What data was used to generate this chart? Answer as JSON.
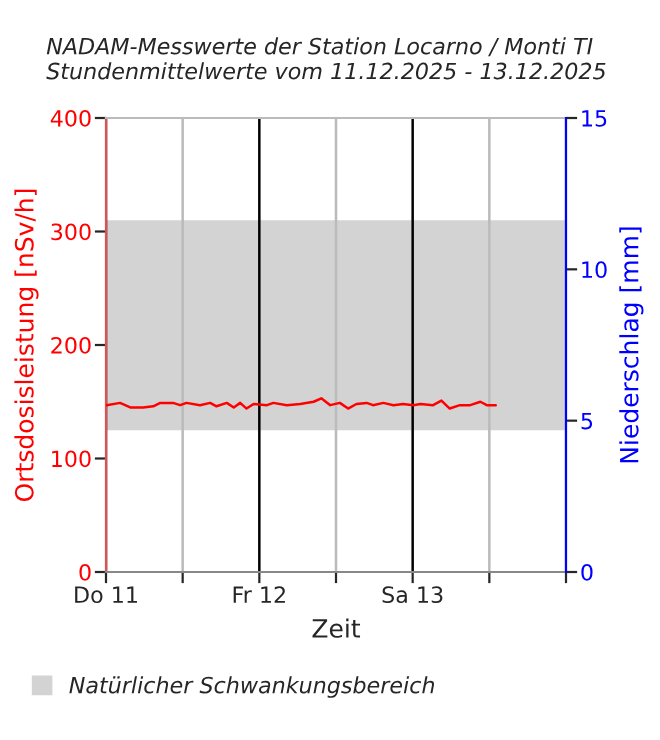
{
  "chart_data": {
    "type": "line",
    "title": "NADAM-Messwerte der Station Locarno / Monti TI\nStundenmittelwerte vom 11.12.2025 - 13.12.2025",
    "xlabel": "Zeit",
    "ylabel": "Ortsdosisleistung [nSv/h]",
    "y2label": "Niederschlag [mm]",
    "series": [
      {
        "color": "#ff0000",
        "x": [
          "2025-12-11T00:06",
          "2025-12-11T02:12",
          "2025-12-11T03:48",
          "2025-12-11T05:48",
          "2025-12-11T07:24",
          "2025-12-11T08:30",
          "2025-12-11T10:30",
          "2025-12-11T11:36",
          "2025-12-11T12:36",
          "2025-12-11T14:42",
          "2025-12-11T16:18",
          "2025-12-11T17:18",
          "2025-12-11T18:54",
          "2025-12-11T20:00",
          "2025-12-11T21:00",
          "2025-12-11T22:00",
          "2025-12-11T23:06",
          "2025-12-12T01:12",
          "2025-12-12T02:12",
          "2025-12-12T04:18",
          "2025-12-12T06:24",
          "2025-12-12T08:30",
          "2025-12-12T09:42",
          "2025-12-12T11:06",
          "2025-12-12T12:36",
          "2025-12-12T13:54",
          "2025-12-12T15:12",
          "2025-12-12T16:48",
          "2025-12-12T17:48",
          "2025-12-12T19:24",
          "2025-12-12T21:00",
          "2025-12-12T22:30",
          "2025-12-13T00:06",
          "2025-12-13T01:12",
          "2025-12-13T03:12",
          "2025-12-13T04:30",
          "2025-12-13T05:48",
          "2025-12-13T07:24",
          "2025-12-13T09:00",
          "2025-12-13T10:36",
          "2025-12-13T11:36",
          "2025-12-13T13:00"
        ],
        "values": [
          147,
          149,
          145,
          145,
          146,
          149,
          149,
          147,
          149,
          147,
          149,
          146,
          149,
          145,
          149,
          144,
          148,
          147,
          149,
          147,
          148,
          150,
          153,
          147,
          149,
          144,
          148,
          149,
          147,
          149,
          147,
          148,
          147,
          148,
          147,
          151,
          144,
          147,
          147,
          150,
          147,
          147
        ]
      }
    ],
    "xlim": [
      "2025-12-11",
      "2025-12-14"
    ],
    "xticks": [
      {
        "value": "2025-12-11",
        "label": "Do 11"
      },
      {
        "value": "2025-12-11T12:00",
        "label": null
      },
      {
        "value": "2025-12-12",
        "label": "Fr 12"
      },
      {
        "value": "2025-12-12T12:00",
        "label": null
      },
      {
        "value": "2025-12-13",
        "label": "Sa 13"
      },
      {
        "value": "2025-12-13T12:00",
        "label": null
      },
      {
        "value": "2025-12-14",
        "label": null
      }
    ],
    "ylim": [
      0,
      400
    ],
    "yticks": [
      0,
      100,
      200,
      300,
      400
    ],
    "y2lim": [
      0,
      15
    ],
    "y2ticks": [
      0,
      5,
      10,
      15
    ],
    "bands": [
      {
        "axis": "y",
        "from": 125,
        "to": 310,
        "label": "Natürlicher Schwankungsbereich",
        "color": "#d3d3d3"
      }
    ],
    "grid": "x",
    "legend": "bottom",
    "marker": "none",
    "line_style": "solid"
  }
}
